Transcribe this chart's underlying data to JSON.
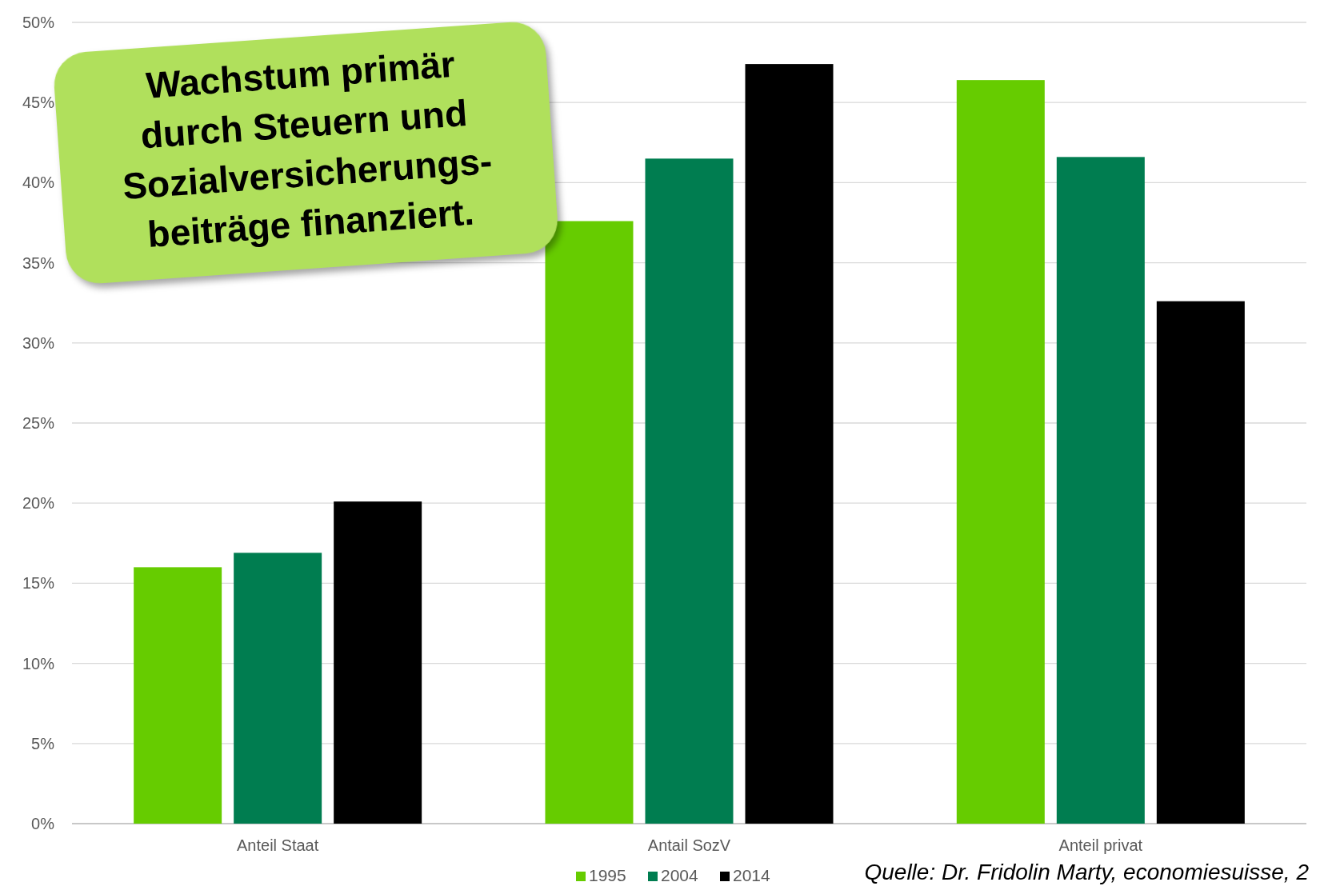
{
  "chart_data": {
    "type": "bar",
    "categories": [
      "Anteil Staat",
      "Antail SozV",
      "Anteil privat"
    ],
    "series": [
      {
        "name": "1995",
        "color": "#66cc00",
        "values": [
          16,
          37.6,
          46.4
        ]
      },
      {
        "name": "2004",
        "color": "#007d50",
        "values": [
          16.9,
          41.5,
          41.6
        ]
      },
      {
        "name": "2014",
        "color": "#000000",
        "values": [
          20.1,
          47.4,
          32.6
        ]
      }
    ],
    "ylim": [
      0,
      50
    ],
    "yticks": [
      {
        "value": 0,
        "label": "0%"
      },
      {
        "value": 5,
        "label": "5%"
      },
      {
        "value": 10,
        "label": "10%"
      },
      {
        "value": 15,
        "label": "15%"
      },
      {
        "value": 20,
        "label": "20%"
      },
      {
        "value": 25,
        "label": "25%"
      },
      {
        "value": 30,
        "label": "30%"
      },
      {
        "value": 35,
        "label": "35%"
      },
      {
        "value": 40,
        "label": "40%"
      },
      {
        "value": 45,
        "label": "45%"
      },
      {
        "value": 50,
        "label": "50%"
      }
    ],
    "grid": "y",
    "legend": "bottom",
    "annotations": [
      "Wachstum primär\ndurch Steuern und\nSozialversicherungs-\nbeiträge finanziert.",
      "Quelle: Dr. Fridolin Marty, economiesuisse, 2"
    ]
  }
}
